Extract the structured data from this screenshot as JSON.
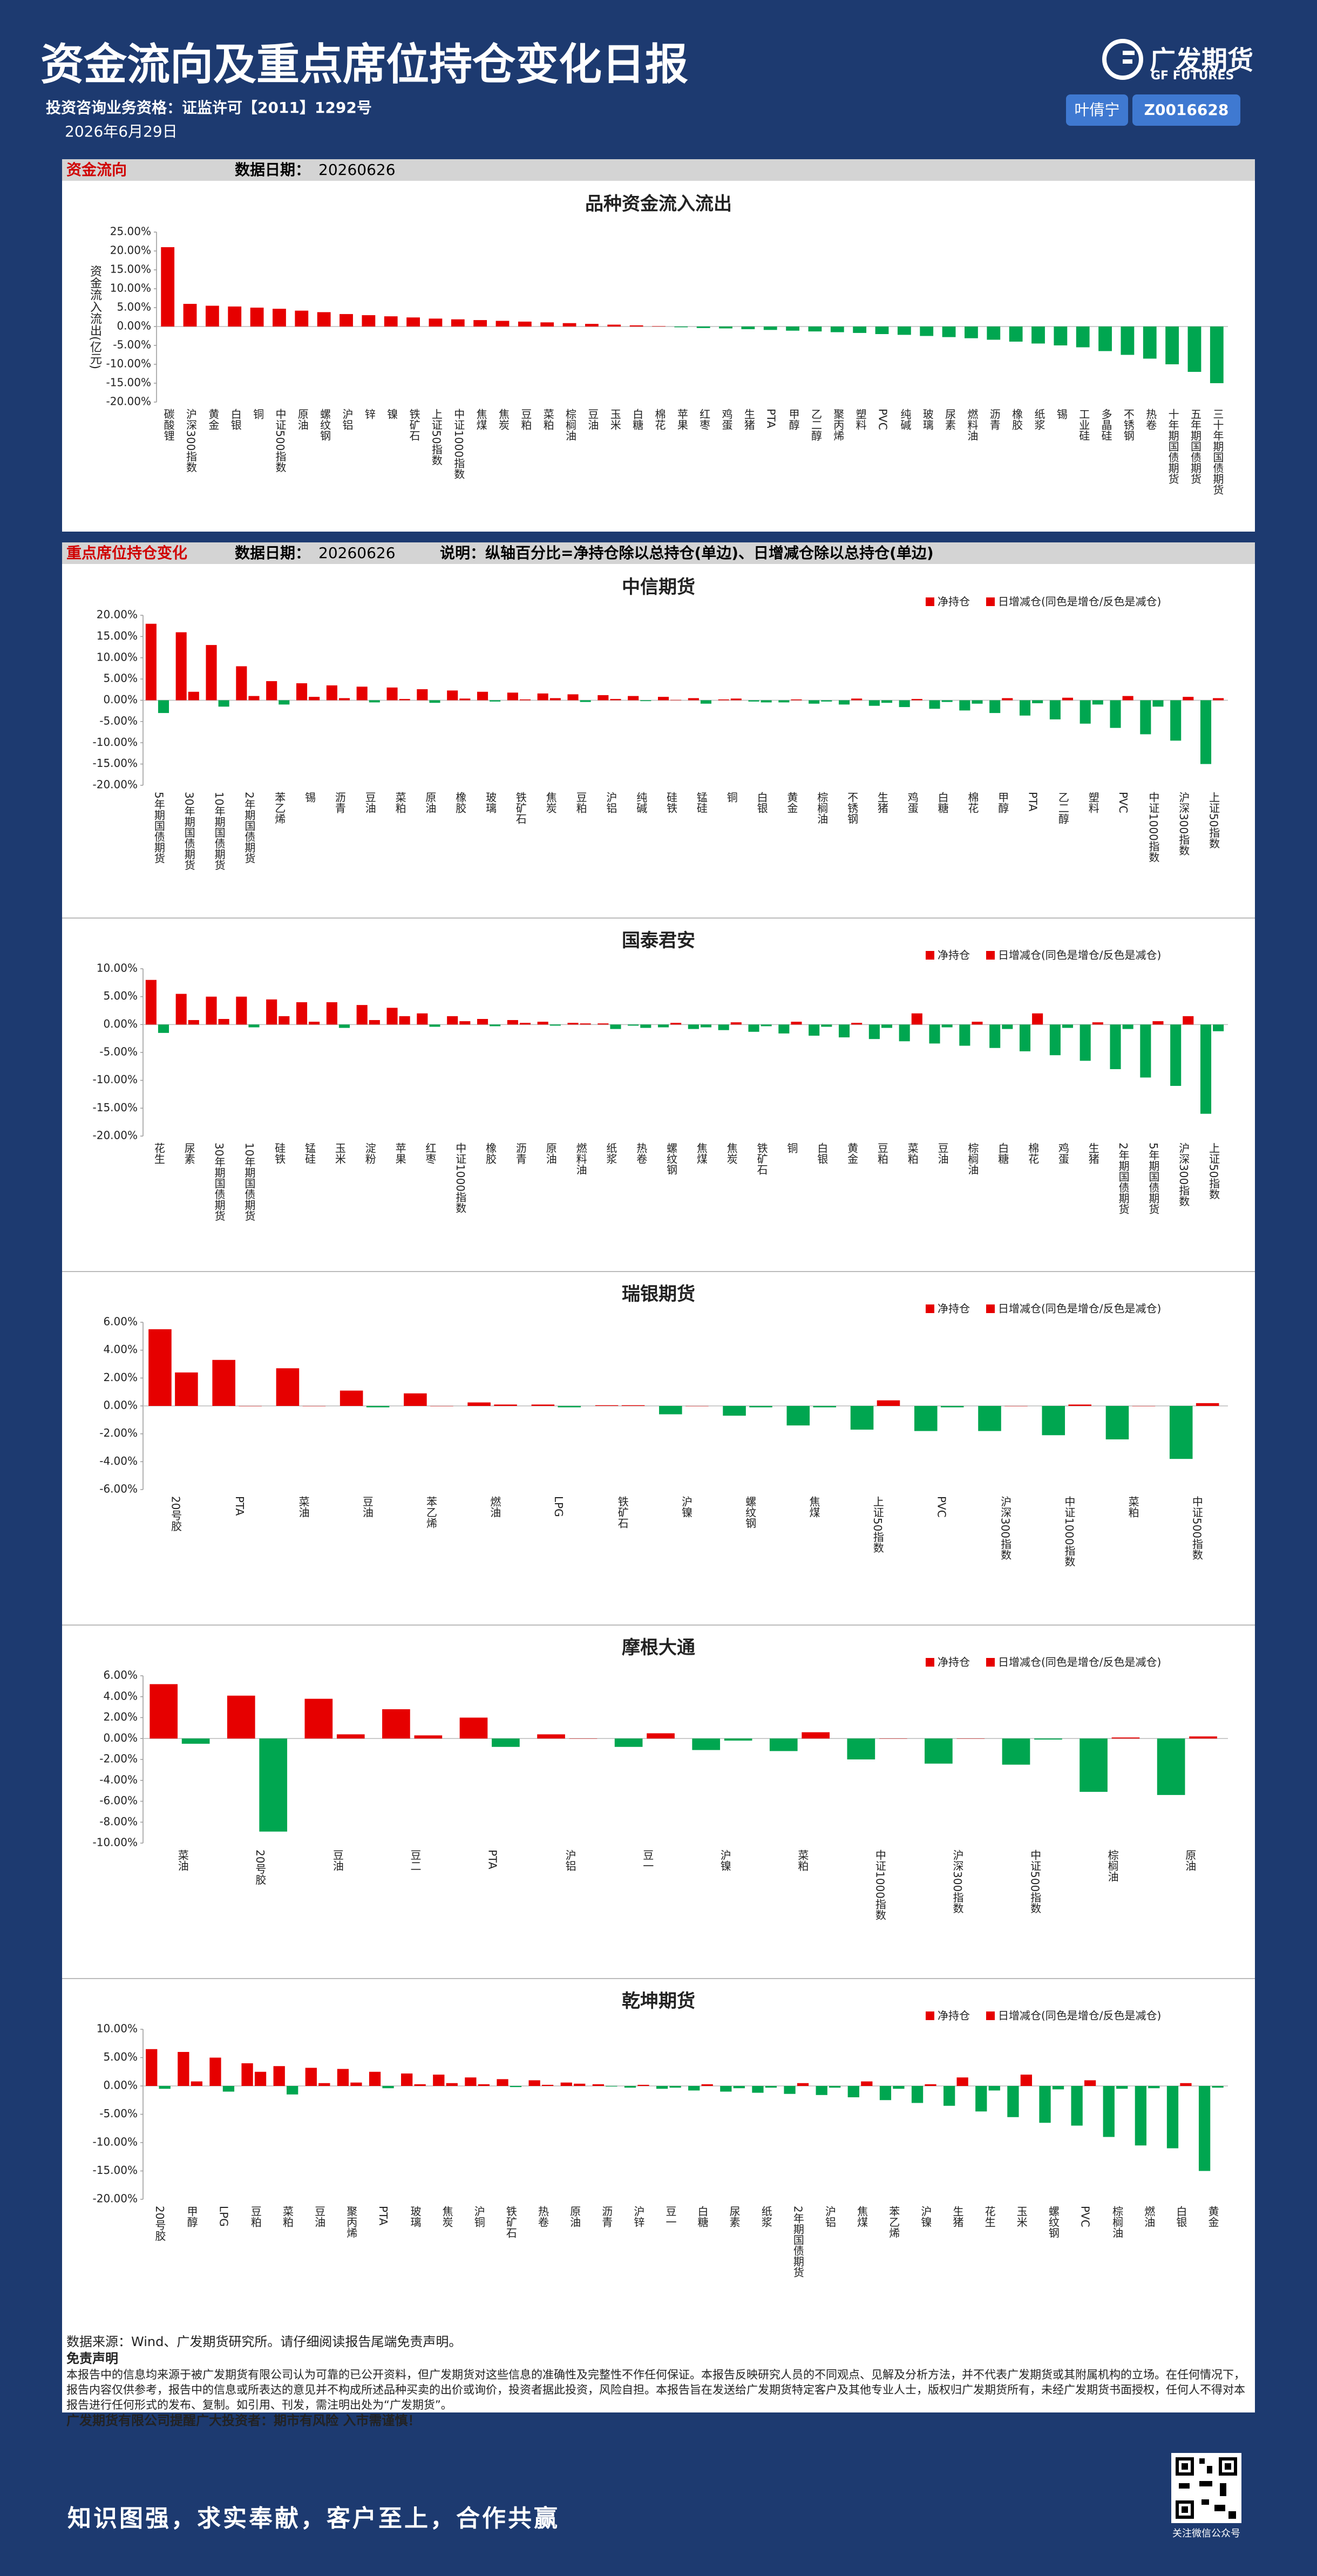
{
  "header": {
    "title": "资金流向及重点席位持仓变化日报",
    "license": "投资咨询业务资格：证监许可【2011】1292号",
    "date": "2026年6月29日",
    "logo_cn": "广发期货",
    "logo_en": "GF FUTURES",
    "analyst": "叶倩宁",
    "analyst_id": "Z0016628"
  },
  "section1": {
    "title": "资金流向",
    "date_label": "数据日期：",
    "date": "20260626"
  },
  "section2": {
    "title": "重点席位持仓变化",
    "date_label": "数据日期：",
    "date": "20260626",
    "note": "说明：纵轴百分比=净持仓除以总持仓(单边)、日增减仓除以总持仓(单边)"
  },
  "chart_data": [
    {
      "type": "bar",
      "title": "品种资金流入流出",
      "y_label": "资金流入流出(亿元)",
      "positive_color": "#e60000",
      "negative_color": "#00a650",
      "categories": [
        "碳酸锂",
        "沪深300指数",
        "黄金",
        "白银",
        "铜",
        "中证500指数",
        "原油",
        "螺纹钢",
        "沪铝",
        "锌",
        "镍",
        "铁矿石",
        "上证50指数",
        "中证1000指数",
        "焦煤",
        "焦炭",
        "豆粕",
        "菜粕",
        "棕榈油",
        "豆油",
        "玉米",
        "白糖",
        "棉花",
        "苹果",
        "红枣",
        "鸡蛋",
        "生猪",
        "PTA",
        "甲醇",
        "乙二醇",
        "聚丙烯",
        "塑料",
        "PVC",
        "纯碱",
        "玻璃",
        "尿素",
        "燃料油",
        "沥青",
        "橡胶",
        "纸浆",
        "锡",
        "工业硅",
        "多晶硅",
        "不锈钢",
        "热卷",
        "十年期国债期货",
        "五年期国债期货",
        "三十年期国债期货"
      ],
      "values": [
        21,
        6,
        5.5,
        5.3,
        5,
        4.7,
        4.2,
        3.8,
        3.3,
        3,
        2.7,
        2.4,
        2.1,
        1.9,
        1.7,
        1.5,
        1.3,
        1.1,
        0.9,
        0.7,
        0.5,
        0.3,
        0.1,
        -0.2,
        -0.4,
        -0.5,
        -0.7,
        -0.9,
        -1.1,
        -1.3,
        -1.5,
        -1.7,
        -2,
        -2.2,
        -2.5,
        -2.8,
        -3.1,
        -3.5,
        -4,
        -4.5,
        -5,
        -5.5,
        -6.5,
        -7.5,
        -8.5,
        -10,
        -12,
        -15
      ],
      "ylim": [
        -20,
        25
      ],
      "yticks": [
        {
          "value": 25,
          "label": "25.00%"
        },
        {
          "value": 20,
          "label": "20.00%"
        },
        {
          "value": 15,
          "label": "15.00%"
        },
        {
          "value": 10,
          "label": "10.00%"
        },
        {
          "value": 5,
          "label": "5.00%"
        },
        {
          "value": 0,
          "label": "0.00%"
        },
        {
          "value": -5,
          "label": "-5.00%"
        },
        {
          "value": -10,
          "label": "-10.00%"
        },
        {
          "value": -15,
          "label": "-15.00%"
        },
        {
          "value": -20,
          "label": "-20.00%"
        }
      ]
    },
    {
      "type": "bar",
      "title": "中信期货",
      "legend": "upper right",
      "positive_color": "#e60000",
      "negative_color": "#00a650",
      "categories": [
        "5年期国债期货",
        "30年期国债期货",
        "10年期国债期货",
        "2年期国债期货",
        "苯乙烯",
        "锡",
        "沥青",
        "豆油",
        "菜粕",
        "原油",
        "橡胶",
        "玻璃",
        "铁矿石",
        "焦炭",
        "豆粕",
        "沪铝",
        "纯碱",
        "硅铁",
        "锰硅",
        "铜",
        "白银",
        "黄金",
        "棕榈油",
        "不锈钢",
        "生猪",
        "鸡蛋",
        "白糖",
        "棉花",
        "甲醇",
        "PTA",
        "乙二醇",
        "塑料",
        "PVC",
        "中证1000指数",
        "沪深300指数",
        "上证50指数"
      ],
      "series": [
        {
          "name": "净持仓",
          "color": "#e60000",
          "values": [
            18,
            16,
            13,
            8,
            4.5,
            4,
            3.5,
            3.2,
            3,
            2.6,
            2.3,
            2,
            1.8,
            1.6,
            1.4,
            1.2,
            1,
            0.8,
            0.5,
            0.2,
            -0.3,
            -0.5,
            -0.8,
            -1,
            -1.3,
            -1.6,
            -2,
            -2.4,
            -3,
            -3.6,
            -4.5,
            -5.5,
            -6.5,
            -8,
            -9.5,
            -15
          ]
        },
        {
          "name": "日增减仓(同色是增仓/反色是减仓)",
          "color": "#e60000",
          "values": [
            -3,
            2,
            -1.5,
            1,
            -1,
            0.8,
            0.5,
            -0.5,
            0.3,
            -0.6,
            0.4,
            -0.3,
            0.2,
            0.5,
            -0.4,
            0.3,
            -0.2,
            0.1,
            -0.8,
            0.4,
            -0.5,
            0.2,
            -0.3,
            0.4,
            -0.6,
            0.3,
            -0.4,
            -0.8,
            0.5,
            -0.7,
            0.6,
            -1,
            1,
            -1.5,
            0.8,
            0.5
          ]
        }
      ],
      "ylim": [
        -20,
        20
      ],
      "yticks": [
        {
          "value": 20,
          "label": "20.00%"
        },
        {
          "value": 15,
          "label": "15.00%"
        },
        {
          "value": 10,
          "label": "10.00%"
        },
        {
          "value": 5,
          "label": "5.00%"
        },
        {
          "value": 0,
          "label": "0.00%"
        },
        {
          "value": -5,
          "label": "-5.00%"
        },
        {
          "value": -10,
          "label": "-10.00%"
        },
        {
          "value": -15,
          "label": "-15.00%"
        },
        {
          "value": -20,
          "label": "-20.00%"
        }
      ]
    },
    {
      "type": "bar",
      "title": "国泰君安",
      "legend": "upper right",
      "positive_color": "#e60000",
      "negative_color": "#00a650",
      "categories": [
        "花生",
        "尿素",
        "30年期国债期货",
        "10年期国债期货",
        "硅铁",
        "锰硅",
        "玉米",
        "淀粉",
        "苹果",
        "红枣",
        "中证1000指数",
        "橡胶",
        "沥青",
        "原油",
        "燃料油",
        "纸浆",
        "热卷",
        "螺纹钢",
        "焦煤",
        "焦炭",
        "铁矿石",
        "铜",
        "白银",
        "黄金",
        "豆粕",
        "菜粕",
        "豆油",
        "棕榈油",
        "白糖",
        "棉花",
        "鸡蛋",
        "生猪",
        "2年期国债期货",
        "5年期国债期货",
        "沪深300指数",
        "上证50指数"
      ],
      "series": [
        {
          "name": "净持仓",
          "color": "#e60000",
          "values": [
            8,
            5.5,
            5,
            5,
            4.5,
            4,
            4,
            3.5,
            3,
            2,
            1.5,
            1,
            0.8,
            0.5,
            0.3,
            0.2,
            -0.2,
            -0.5,
            -0.8,
            -1,
            -1.3,
            -1.6,
            -2,
            -2.3,
            -2.6,
            -3,
            -3.4,
            -3.8,
            -4.2,
            -4.8,
            -5.5,
            -6.5,
            -8,
            -9.5,
            -11,
            -16
          ]
        },
        {
          "name": "日增减仓(同色是增仓/反色是减仓)",
          "color": "#e60000",
          "values": [
            -1.5,
            0.8,
            1,
            -0.5,
            1.5,
            0.5,
            -0.6,
            0.8,
            1.5,
            -0.4,
            0.6,
            -0.3,
            0.3,
            -0.2,
            0.2,
            -0.8,
            -0.6,
            0.3,
            -0.5,
            0.4,
            -0.3,
            0.5,
            -0.4,
            0.3,
            -0.6,
            2,
            -0.5,
            0.5,
            -0.8,
            2,
            -0.6,
            0.4,
            -0.8,
            0.6,
            1.5,
            -1.2
          ]
        }
      ],
      "ylim": [
        -20,
        10
      ],
      "yticks": [
        {
          "value": 10,
          "label": "10.00%"
        },
        {
          "value": 5,
          "label": "5.00%"
        },
        {
          "value": 0,
          "label": "0.00%"
        },
        {
          "value": -5,
          "label": "-5.00%"
        },
        {
          "value": -10,
          "label": "-10.00%"
        },
        {
          "value": -15,
          "label": "-15.00%"
        },
        {
          "value": -20,
          "label": "-20.00%"
        }
      ]
    },
    {
      "type": "bar",
      "title": "瑞银期货",
      "legend": "upper right",
      "positive_color": "#e60000",
      "negative_color": "#00a650",
      "categories": [
        "20号胶",
        "PTA",
        "菜油",
        "豆油",
        "苯乙烯",
        "燃油",
        "LPG",
        "铁矿石",
        "沪镍",
        "螺纹钢",
        "焦煤",
        "上证50指数",
        "PVC",
        "沪深300指数",
        "中证1000指数",
        "菜粕",
        "中证500指数"
      ],
      "series": [
        {
          "name": "净持仓",
          "color": "#e60000",
          "values": [
            5.5,
            3.3,
            2.7,
            1.1,
            0.9,
            0.25,
            0.1,
            0.05,
            -0.6,
            -0.7,
            -1.4,
            -1.7,
            -1.8,
            -1.8,
            -2.1,
            -2.4,
            -3.8
          ]
        },
        {
          "name": "日增减仓(同色是增仓/反色是减仓)",
          "color": "#e60000",
          "values": [
            2.4,
            0,
            0,
            -0.1,
            0,
            0.1,
            -0.1,
            0.05,
            0,
            -0.1,
            -0.1,
            0.4,
            -0.1,
            0,
            0.1,
            0,
            0.2
          ]
        }
      ],
      "ylim": [
        -6,
        6
      ],
      "yticks": [
        {
          "value": 6,
          "label": "6.00%"
        },
        {
          "value": 4,
          "label": "4.00%"
        },
        {
          "value": 2,
          "label": "2.00%"
        },
        {
          "value": 0,
          "label": "0.00%"
        },
        {
          "value": -2,
          "label": "-2.00%"
        },
        {
          "value": -4,
          "label": "-4.00%"
        },
        {
          "value": -6,
          "label": "-6.00%"
        }
      ]
    },
    {
      "type": "bar",
      "title": "摩根大通",
      "legend": "upper right",
      "positive_color": "#e60000",
      "negative_color": "#00a650",
      "categories": [
        "菜油",
        "20号胶",
        "豆油",
        "豆二",
        "PTA",
        "沪铝",
        "豆一",
        "沪镍",
        "菜粕",
        "中证1000指数",
        "沪深300指数",
        "中证500指数",
        "棕榈油",
        "原油"
      ],
      "series": [
        {
          "name": "净持仓",
          "color": "#e60000",
          "values": [
            5.2,
            4.1,
            3.8,
            2.8,
            2,
            0.4,
            -0.8,
            -1.1,
            -1.2,
            -2,
            -2.4,
            -2.5,
            -5.1,
            -5.4
          ]
        },
        {
          "name": "日增减仓(同色是增仓/反色是减仓)",
          "color": "#e60000",
          "values": [
            -0.5,
            -8.9,
            0.4,
            0.3,
            -0.8,
            0,
            0.5,
            -0.2,
            0.6,
            0,
            0,
            -0.1,
            0.1,
            0.2
          ]
        }
      ],
      "ylim": [
        -10,
        6
      ],
      "yticks": [
        {
          "value": 6,
          "label": "6.00%"
        },
        {
          "value": 4,
          "label": "4.00%"
        },
        {
          "value": 2,
          "label": "2.00%"
        },
        {
          "value": 0,
          "label": "0.00%"
        },
        {
          "value": -2,
          "label": "-2.00%"
        },
        {
          "value": -4,
          "label": "-4.00%"
        },
        {
          "value": -6,
          "label": "-6.00%"
        },
        {
          "value": -8,
          "label": "-8.00%"
        },
        {
          "value": -10,
          "label": "-10.00%"
        }
      ]
    },
    {
      "type": "bar",
      "title": "乾坤期货",
      "legend": "upper right",
      "positive_color": "#e60000",
      "negative_color": "#00a650",
      "categories": [
        "20号胶",
        "甲醇",
        "LPG",
        "豆粕",
        "菜粕",
        "豆油",
        "聚丙烯",
        "PTA",
        "玻璃",
        "焦炭",
        "沪铜",
        "铁矿石",
        "热卷",
        "原油",
        "沥青",
        "沪锌",
        "豆一",
        "白糖",
        "尿素",
        "纸浆",
        "2年期国债期货",
        "沪铝",
        "焦煤",
        "苯乙烯",
        "沪镍",
        "生猪",
        "花生",
        "玉米",
        "螺纹钢",
        "PVC",
        "棕榈油",
        "燃油",
        "白银",
        "黄金"
      ],
      "series": [
        {
          "name": "净持仓",
          "color": "#e60000",
          "values": [
            6.5,
            6,
            5,
            4,
            3.5,
            3.2,
            3,
            2.5,
            2.2,
            2,
            1.5,
            1.2,
            1,
            0.6,
            0.3,
            -0.3,
            -0.5,
            -0.8,
            -1,
            -1.2,
            -1.4,
            -1.6,
            -2,
            -2.5,
            -3,
            -3.5,
            -4.5,
            -5.5,
            -6.5,
            -7,
            -9,
            -10.5,
            -11,
            -15
          ]
        },
        {
          "name": "日增减仓(同色是增仓/反色是减仓)",
          "color": "#e60000",
          "values": [
            -0.5,
            0.8,
            -1,
            2.5,
            -1.5,
            0.5,
            0.6,
            -0.4,
            0.3,
            0.5,
            0.3,
            -0.2,
            0.2,
            0.4,
            -0.1,
            0.2,
            -0.3,
            0.3,
            -0.4,
            -0.3,
            0.5,
            -0.3,
            0.8,
            -0.5,
            0.3,
            1.5,
            -0.8,
            2,
            -0.6,
            1,
            -0.5,
            -0.4,
            0.5,
            -0.3
          ]
        }
      ],
      "ylim": [
        -20,
        10
      ],
      "yticks": [
        {
          "value": 10,
          "label": "10.00%"
        },
        {
          "value": 5,
          "label": "5.00%"
        },
        {
          "value": 0,
          "label": "0.00%"
        },
        {
          "value": -5,
          "label": "-5.00%"
        },
        {
          "value": -10,
          "label": "-10.00%"
        },
        {
          "value": -15,
          "label": "-15.00%"
        },
        {
          "value": -20,
          "label": "-20.00%"
        }
      ]
    }
  ],
  "footer": {
    "source": "数据来源：Wind、广发期货研究所。请仔细阅读报告尾端免责声明。",
    "disclaimer_title": "免责声明",
    "disclaimer": "本报告中的信息均来源于被广发期货有限公司认为可靠的已公开资料，但广发期货对这些信息的准确性及完整性不作任何保证。本报告反映研究人员的不同观点、见解及分析方法，并不代表广发期货或其附属机构的立场。在任何情况下，报告内容仅供参考，报告中的信息或所表达的意见并不构成所述品种买卖的出价或询价，投资者据此投资，风险自担。本报告旨在发送给广发期货特定客户及其他专业人士，版权归广发期货所有，未经广发期货书面授权，任何人不得对本报告进行任何形式的发布、复制。如引用、刊发，需注明出处为“广发期货”。",
    "warning": "广发期货有限公司提醒广大投资者：期市有风险 入市需谨慎！",
    "slogan": "知识图强，求实奉献，客户至上，合作共赢",
    "qr_caption": "关注微信公众号"
  }
}
